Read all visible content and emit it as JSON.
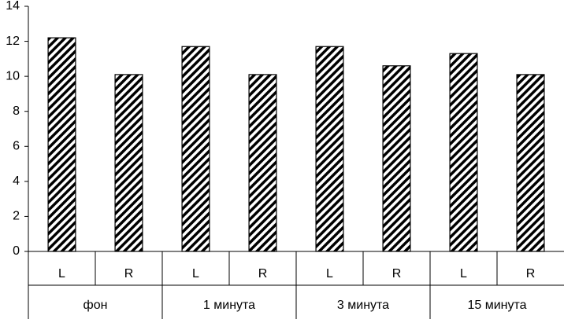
{
  "chart_data": {
    "type": "bar",
    "categories": [
      "L",
      "R",
      "L",
      "R",
      "L",
      "R",
      "L",
      "R"
    ],
    "groups": [
      "фон",
      "1 минута",
      "3 минута",
      "15 минута"
    ],
    "values": [
      12.2,
      10.1,
      11.7,
      10.1,
      11.7,
      10.6,
      11.3,
      10.1
    ],
    "color": "#000000",
    "ylim": [
      0,
      14
    ],
    "yticks": [
      0,
      2,
      4,
      6,
      8,
      10,
      12,
      14
    ]
  }
}
